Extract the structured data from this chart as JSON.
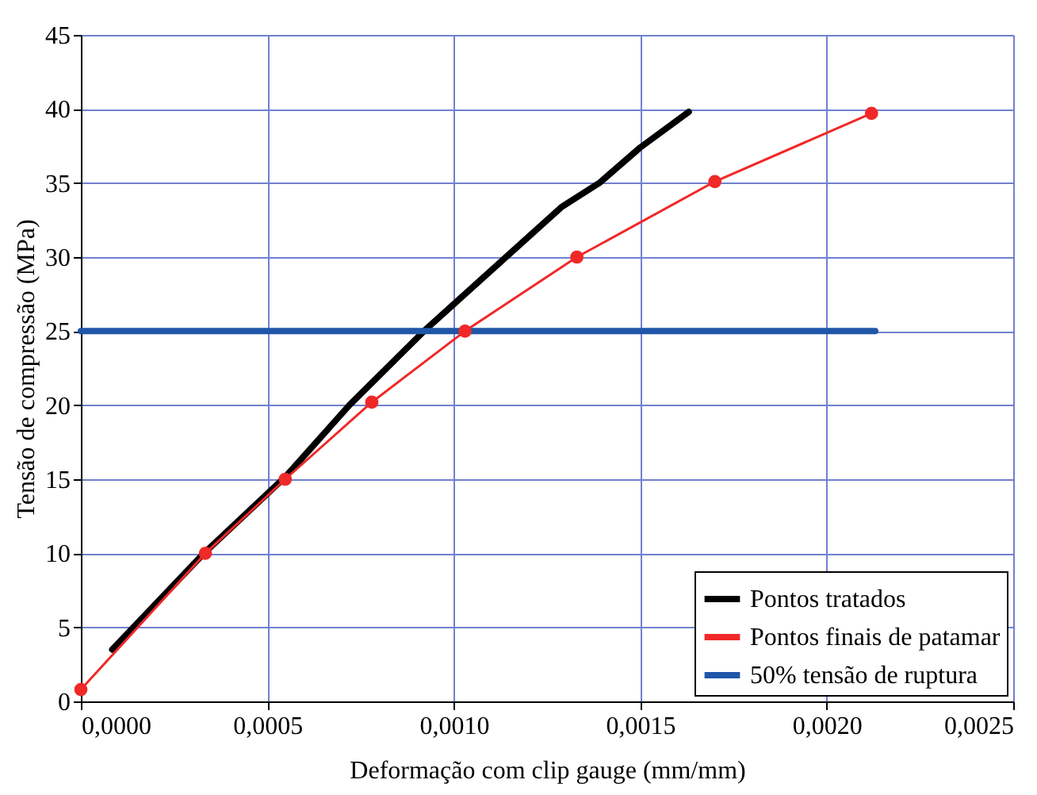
{
  "chart_data": {
    "type": "line",
    "xlabel": "Deformação com clip gauge (mm/mm)",
    "ylabel": "Tensão de compressão (MPa)",
    "xlim": [
      0,
      0.0025
    ],
    "xticks": [
      {
        "value": 0,
        "label": "0,0000"
      },
      {
        "value": 0.0005,
        "label": "0,0005"
      },
      {
        "value": 0.001,
        "label": "0,0010"
      },
      {
        "value": 0.0015,
        "label": "0,0015"
      },
      {
        "value": 0.002,
        "label": "0,0020"
      },
      {
        "value": 0.0025,
        "label": "0,0025"
      }
    ],
    "ylim": [
      0,
      45
    ],
    "yticks": [
      0,
      5,
      10,
      15,
      20,
      25,
      30,
      35,
      40,
      45
    ],
    "grid": true,
    "legend": "bottom right",
    "series": [
      {
        "name": "Pontos tratados",
        "color": "#000000",
        "marker": "none",
        "x": [
          8.4e-05,
          0.00033,
          0.00055,
          0.00072,
          0.00092,
          0.00114,
          0.00129,
          0.00139,
          0.0015,
          0.00163
        ],
        "values": [
          3.5,
          10,
          15.2,
          20,
          25,
          30,
          33.4,
          35,
          37.4,
          39.8
        ]
      },
      {
        "name": "Pontos finais de patamar",
        "color": "#f02828",
        "marker": "circle",
        "x": [
          0,
          0.000334,
          0.000548,
          0.00078,
          0.00103,
          0.00133,
          0.0017,
          0.00212
        ],
        "values": [
          0.8,
          10,
          15,
          20.2,
          25,
          30,
          35.1,
          39.7
        ]
      },
      {
        "name": "50% tensão de ruptura",
        "color": "#1f56a8",
        "marker": "none",
        "x": [
          0,
          0.00213
        ],
        "values": [
          25,
          25
        ]
      }
    ]
  }
}
